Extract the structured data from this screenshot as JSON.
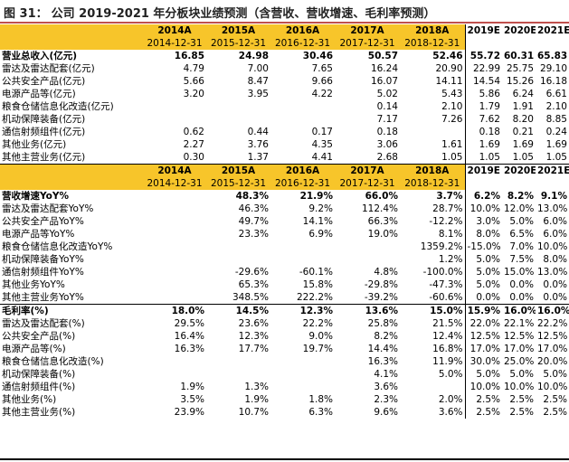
{
  "title": {
    "label": "图 31：",
    "text": "公司 2019-2021 年分板块业绩预测（含营收、营收增速、毛利率预测）"
  },
  "columns": [
    "2014A",
    "2015A",
    "2016A",
    "2017A",
    "2018A",
    "2019E",
    "2020E",
    "2021E"
  ],
  "dates": [
    "2014-12-31",
    "2015-12-31",
    "2016-12-31",
    "2017-12-31",
    "2018-12-31"
  ],
  "revenue": {
    "rows": [
      {
        "label": "营业总收入(亿元)",
        "bold": true,
        "values": [
          "16.85",
          "24.98",
          "30.46",
          "50.57",
          "52.46",
          "55.72",
          "60.31",
          "65.83"
        ]
      },
      {
        "label": "雷达及雷达配套(亿元)",
        "values": [
          "4.79",
          "7.00",
          "7.65",
          "16.24",
          "20.90",
          "22.99",
          "25.75",
          "29.10"
        ]
      },
      {
        "label": "公共安全产品(亿元)",
        "values": [
          "5.66",
          "8.47",
          "9.66",
          "16.07",
          "14.11",
          "14.54",
          "15.26",
          "16.18"
        ]
      },
      {
        "label": "电源产品等(亿元)",
        "values": [
          "3.20",
          "3.95",
          "4.22",
          "5.02",
          "5.43",
          "5.86",
          "6.24",
          "6.61"
        ]
      },
      {
        "label": "粮食仓储信息化改造(亿元)",
        "values": [
          "",
          "",
          "",
          "0.14",
          "2.10",
          "1.79",
          "1.91",
          "2.10"
        ]
      },
      {
        "label": "机动保障装备(亿元)",
        "values": [
          "",
          "",
          "",
          "7.17",
          "7.26",
          "7.62",
          "8.20",
          "8.85"
        ]
      },
      {
        "label": "通信射频组件(亿元)",
        "values": [
          "0.62",
          "0.44",
          "0.17",
          "0.18",
          "",
          "0.18",
          "0.21",
          "0.24"
        ]
      },
      {
        "label": "其他业务(亿元)",
        "values": [
          "2.27",
          "3.76",
          "4.35",
          "3.06",
          "1.61",
          "1.69",
          "1.69",
          "1.69"
        ]
      },
      {
        "label": "其他主营业务(亿元)",
        "values": [
          "0.30",
          "1.37",
          "4.41",
          "2.68",
          "1.05",
          "1.05",
          "1.05",
          "1.05"
        ]
      }
    ]
  },
  "growth": {
    "rows": [
      {
        "label": "营收增速YoY%",
        "bold": true,
        "values": [
          "",
          "48.3%",
          "21.9%",
          "66.0%",
          "3.7%",
          "6.2%",
          "8.2%",
          "9.1%"
        ]
      },
      {
        "label": "雷达及雷达配套YoY%",
        "values": [
          "",
          "46.3%",
          "9.2%",
          "112.4%",
          "28.7%",
          "10.0%",
          "12.0%",
          "13.0%"
        ]
      },
      {
        "label": "公共安全产品YoY%",
        "values": [
          "",
          "49.7%",
          "14.1%",
          "66.3%",
          "-12.2%",
          "3.0%",
          "5.0%",
          "6.0%"
        ]
      },
      {
        "label": "电源产品等YoY%",
        "values": [
          "",
          "23.3%",
          "6.9%",
          "19.0%",
          "8.1%",
          "8.0%",
          "6.5%",
          "6.0%"
        ]
      },
      {
        "label": "粮食仓储信息化改造YoY%",
        "values": [
          "",
          "",
          "",
          "",
          "1359.2%",
          "-15.0%",
          "7.0%",
          "10.0%"
        ]
      },
      {
        "label": "机动保障装备YoY%",
        "values": [
          "",
          "",
          "",
          "",
          "1.2%",
          "5.0%",
          "7.5%",
          "8.0%"
        ]
      },
      {
        "label": "通信射频组件YoY%",
        "values": [
          "",
          "-29.6%",
          "-60.1%",
          "4.8%",
          "-100.0%",
          "5.0%",
          "15.0%",
          "13.0%"
        ]
      },
      {
        "label": "其他业务YoY%",
        "values": [
          "",
          "65.3%",
          "15.8%",
          "-29.8%",
          "-47.3%",
          "5.0%",
          "0.0%",
          "0.0%"
        ]
      },
      {
        "label": "其他主营业务YoY%",
        "values": [
          "",
          "348.5%",
          "222.2%",
          "-39.2%",
          "-60.6%",
          "0.0%",
          "0.0%",
          "0.0%"
        ]
      }
    ]
  },
  "margin": {
    "rows": [
      {
        "label": "毛利率(%)",
        "bold": true,
        "values": [
          "18.0%",
          "14.5%",
          "12.3%",
          "13.6%",
          "15.0%",
          "15.9%",
          "16.0%",
          "16.0%"
        ]
      },
      {
        "label": "雷达及雷达配套(%)",
        "values": [
          "29.5%",
          "23.6%",
          "22.2%",
          "25.8%",
          "21.5%",
          "22.0%",
          "22.1%",
          "22.2%"
        ]
      },
      {
        "label": "公共安全产品(%)",
        "values": [
          "16.4%",
          "12.3%",
          "9.0%",
          "8.2%",
          "12.4%",
          "12.5%",
          "12.5%",
          "12.5%"
        ]
      },
      {
        "label": "电源产品等(%)",
        "values": [
          "16.3%",
          "17.7%",
          "19.7%",
          "14.4%",
          "16.8%",
          "17.0%",
          "17.0%",
          "17.0%"
        ]
      },
      {
        "label": "粮食仓储信息化改造(%)",
        "values": [
          "",
          "",
          "",
          "16.3%",
          "11.9%",
          "30.0%",
          "25.0%",
          "20.0%"
        ]
      },
      {
        "label": "机动保障装备(%)",
        "values": [
          "",
          "",
          "",
          "4.1%",
          "5.0%",
          "5.0%",
          "5.0%",
          "5.0%"
        ]
      },
      {
        "label": "通信射频组件(%)",
        "values": [
          "1.9%",
          "1.3%",
          "",
          "3.6%",
          "",
          "10.0%",
          "10.0%",
          "10.0%"
        ]
      },
      {
        "label": "其他业务(%)",
        "values": [
          "3.5%",
          "1.9%",
          "1.8%",
          "2.3%",
          "2.0%",
          "2.5%",
          "2.5%",
          "2.5%"
        ]
      },
      {
        "label": "其他主营业务(%)",
        "values": [
          "23.9%",
          "10.7%",
          "6.3%",
          "9.6%",
          "3.6%",
          "2.5%",
          "2.5%",
          "2.5%"
        ]
      }
    ]
  },
  "colors": {
    "header_fill": "#f7c52a",
    "title_rule": "#c0504d"
  }
}
